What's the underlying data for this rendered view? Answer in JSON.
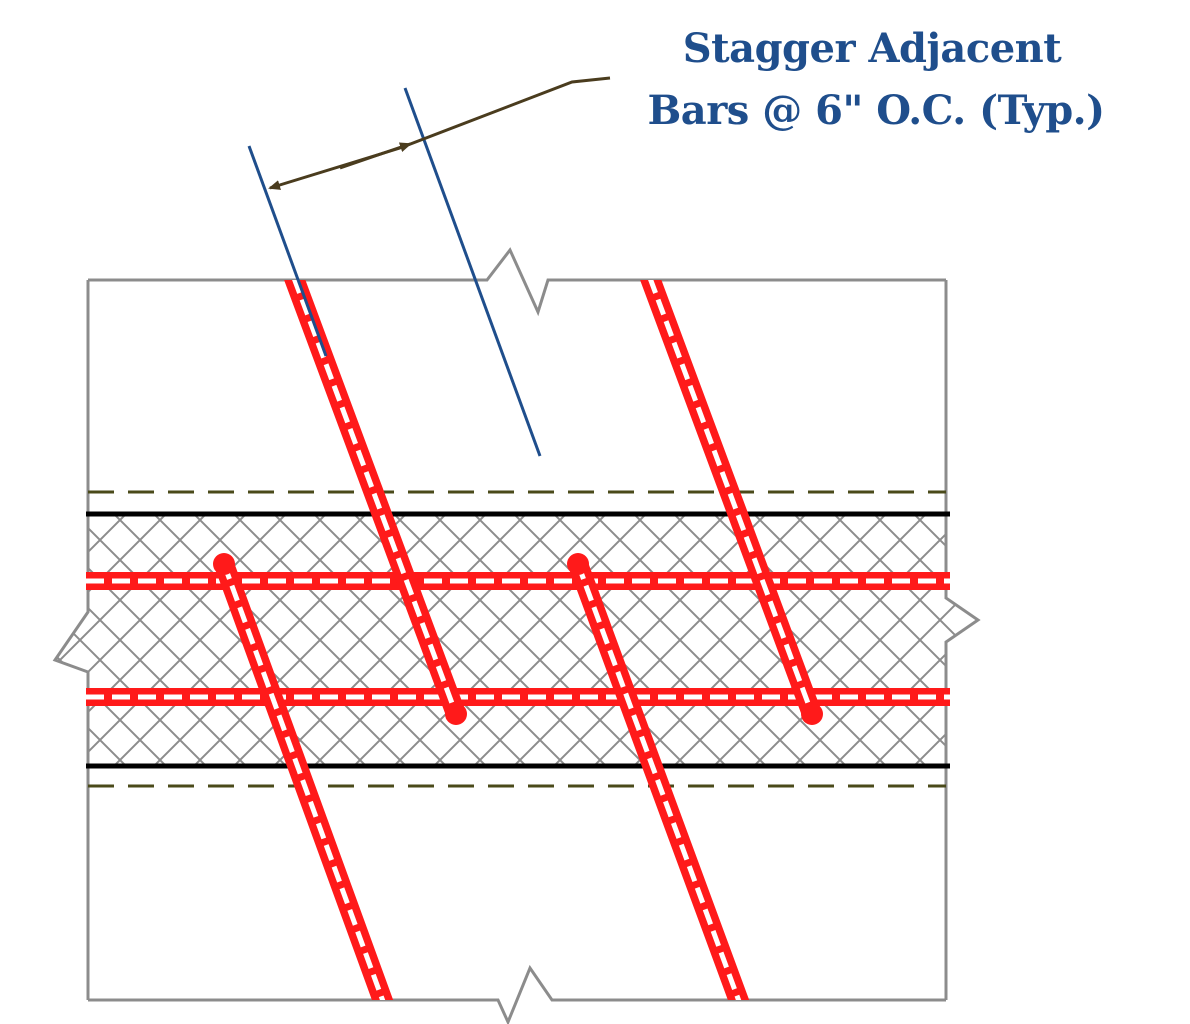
{
  "annotation": {
    "line1": "Stagger Adjacent",
    "line2": "Bars @ 6\" O.C. (Typ.)"
  },
  "colors": {
    "annotation_text": "#1f4e8c",
    "bar": "#ff1a1a",
    "extension_line": "#1f4e8c",
    "leader": "#4a3c1e",
    "outline": "#8c8c8c",
    "hatch": "#8c8c8c",
    "slab_line": "#000000",
    "dashed_line": "#4a4a1a"
  }
}
